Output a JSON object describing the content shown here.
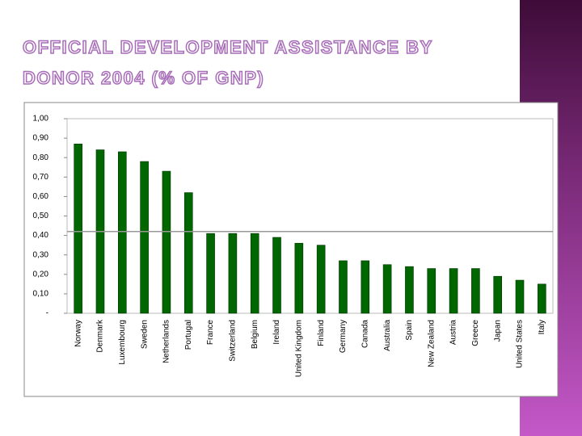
{
  "chart_data": {
    "type": "bar",
    "title": "OFFICIAL DEVELOPMENT ASSISTANCE BY DONOR 2004 (% OF GNP)",
    "categories": [
      "Norway",
      "Denmark",
      "Luxembourg",
      "Sweden",
      "Netherlands",
      "Portugal",
      "France",
      "Switzerland",
      "Belgium",
      "Ireland",
      "United Kingdom",
      "Finland",
      "Germany",
      "Canada",
      "Australia",
      "Spain",
      "New Zealand",
      "Austria",
      "Greece",
      "Japan",
      "United States",
      "Italy"
    ],
    "values": [
      0.87,
      0.84,
      0.83,
      0.78,
      0.73,
      0.62,
      0.41,
      0.41,
      0.41,
      0.39,
      0.36,
      0.35,
      0.27,
      0.27,
      0.25,
      0.24,
      0.23,
      0.23,
      0.23,
      0.19,
      0.17,
      0.15
    ],
    "color": "#006600",
    "reference_line": {
      "value": 0.42,
      "color": "#999999"
    },
    "ylim": [
      0,
      1
    ],
    "yticks": [
      {
        "value": 0,
        "label": "-"
      },
      {
        "value": 0.1,
        "label": "0,10"
      },
      {
        "value": 0.2,
        "label": "0,20"
      },
      {
        "value": 0.3,
        "label": "0,30"
      },
      {
        "value": 0.4,
        "label": "0,40"
      },
      {
        "value": 0.5,
        "label": "0,50"
      },
      {
        "value": 0.6,
        "label": "0,60"
      },
      {
        "value": 0.7,
        "label": "0,70"
      },
      {
        "value": 0.8,
        "label": "0,80"
      },
      {
        "value": 0.9,
        "label": "0,90"
      },
      {
        "value": 1,
        "label": "1,00"
      }
    ],
    "grid": false
  }
}
